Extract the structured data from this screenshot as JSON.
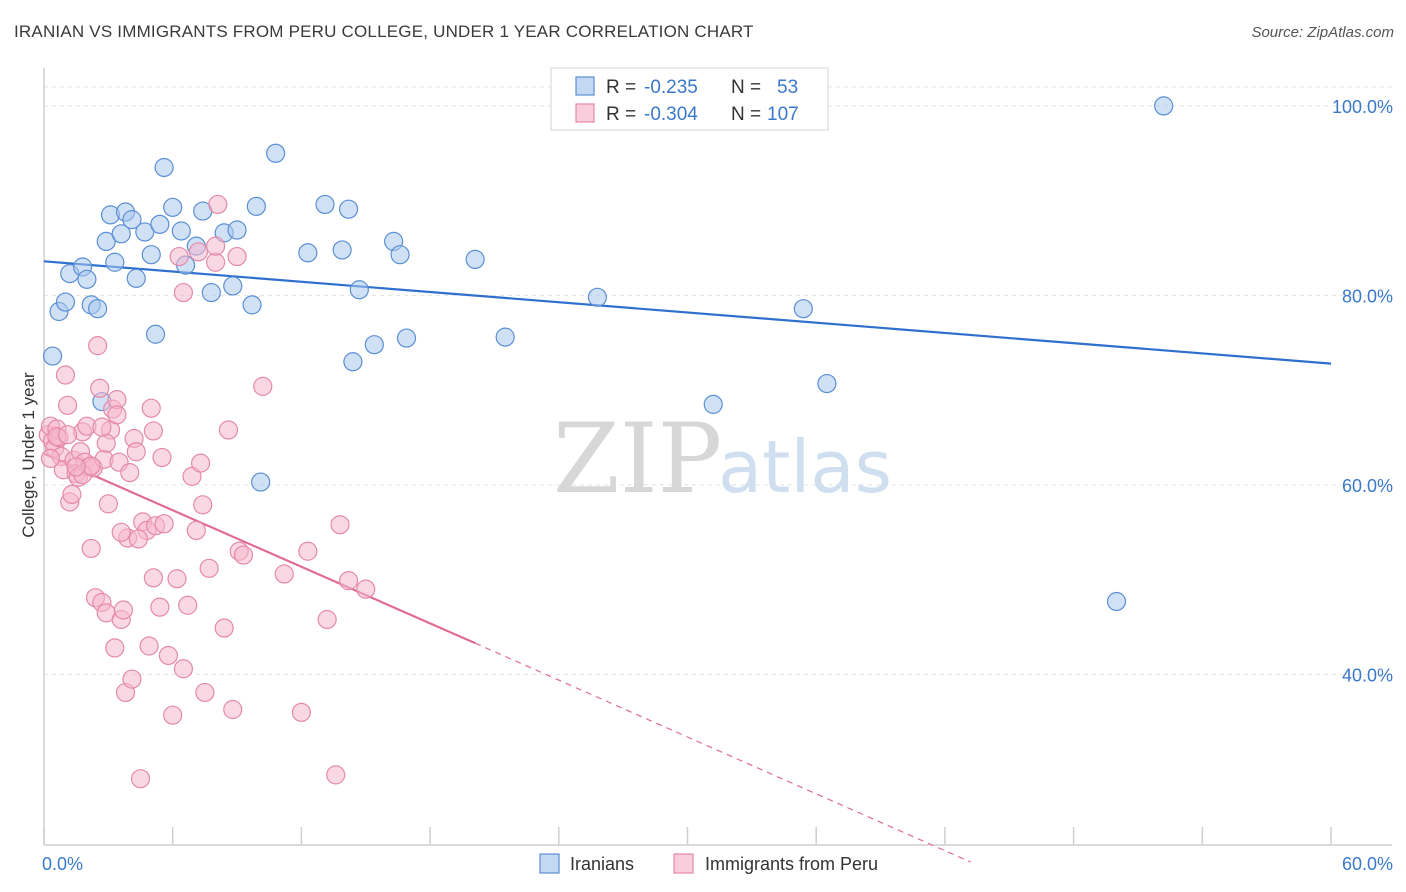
{
  "title": "IRANIAN VS IMMIGRANTS FROM PERU COLLEGE, UNDER 1 YEAR CORRELATION CHART",
  "source": "Source: ZipAtlas.com",
  "watermark": {
    "zip": "ZIP",
    "atlas": "atlas"
  },
  "legend": {
    "rows": [
      {
        "r_label": "R = ",
        "r_value": "-0.235",
        "n_label": "N = ",
        "n_value": "53"
      },
      {
        "r_label": "R = ",
        "r_value": "-0.304",
        "n_label": "N = ",
        "n_value": "107"
      }
    ]
  },
  "colors": {
    "iranians_fill": "#aac8ee",
    "iranians_stroke": "#5b8fd4",
    "iranians_line": "#2f6fcd",
    "peru_fill": "#f6b8cc",
    "peru_stroke": "#e48aa8",
    "peru_line": "#e06c95",
    "axis_label": "#3a78c9"
  },
  "chart_data": {
    "type": "scatter",
    "xlabel": "",
    "ylabel": "College, Under 1 year",
    "xlim": [
      0,
      60
    ],
    "ylim": [
      22,
      104
    ],
    "x_tick_labels": [
      "0.0%",
      "60.0%"
    ],
    "x_ticks": [
      0,
      60
    ],
    "y_ticks": [
      40,
      60,
      80,
      100
    ],
    "y_tick_labels": [
      "40.0%",
      "60.0%",
      "80.0%",
      "100.0%"
    ],
    "grid": true,
    "legend_position": "bottom",
    "series": [
      {
        "name": "Iranians",
        "trend": {
          "x": [
            0,
            60
          ],
          "y": [
            83.6,
            72.8
          ],
          "dashed_to": null
        },
        "points": [
          [
            0.4,
            73.6
          ],
          [
            0.7,
            78.3
          ],
          [
            1.0,
            79.3
          ],
          [
            1.2,
            82.3
          ],
          [
            1.8,
            83.0
          ],
          [
            2.0,
            81.7
          ],
          [
            2.2,
            79.0
          ],
          [
            2.5,
            78.6
          ],
          [
            2.7,
            68.8
          ],
          [
            2.9,
            85.7
          ],
          [
            3.1,
            88.5
          ],
          [
            3.3,
            83.5
          ],
          [
            3.6,
            86.5
          ],
          [
            3.8,
            88.8
          ],
          [
            4.1,
            88.0
          ],
          [
            4.3,
            81.8
          ],
          [
            4.7,
            86.7
          ],
          [
            5.0,
            84.3
          ],
          [
            5.2,
            75.9
          ],
          [
            5.4,
            87.5
          ],
          [
            5.6,
            93.5
          ],
          [
            6.0,
            89.3
          ],
          [
            6.4,
            86.8
          ],
          [
            6.6,
            83.2
          ],
          [
            7.1,
            85.2
          ],
          [
            7.4,
            88.9
          ],
          [
            7.8,
            80.3
          ],
          [
            8.4,
            86.6
          ],
          [
            8.8,
            81.0
          ],
          [
            9.0,
            86.9
          ],
          [
            9.7,
            79.0
          ],
          [
            9.9,
            89.4
          ],
          [
            10.1,
            60.3
          ],
          [
            10.8,
            95.0
          ],
          [
            12.3,
            84.5
          ],
          [
            13.1,
            89.6
          ],
          [
            13.9,
            84.8
          ],
          [
            14.2,
            89.1
          ],
          [
            14.4,
            73.0
          ],
          [
            14.7,
            80.6
          ],
          [
            15.4,
            74.8
          ],
          [
            16.3,
            85.7
          ],
          [
            16.6,
            84.3
          ],
          [
            16.9,
            75.5
          ],
          [
            20.1,
            83.8
          ],
          [
            21.5,
            75.6
          ],
          [
            25.8,
            79.8
          ],
          [
            31.2,
            68.5
          ],
          [
            35.4,
            78.6
          ],
          [
            36.5,
            70.7
          ],
          [
            50.0,
            47.7
          ],
          [
            52.2,
            100.0
          ]
        ]
      },
      {
        "name": "Immigrants from Peru",
        "trend": {
          "x": [
            0,
            20.1
          ],
          "y": [
            63.3,
            43.3
          ],
          "dashed_to": {
            "x": 43.2,
            "y": 20.2
          }
        },
        "points": [
          [
            0.2,
            65.3
          ],
          [
            0.3,
            66.2
          ],
          [
            0.4,
            64.6
          ],
          [
            0.5,
            63.9
          ],
          [
            0.6,
            65.9
          ],
          [
            0.7,
            65.0
          ],
          [
            0.8,
            63.0
          ],
          [
            0.9,
            61.6
          ],
          [
            1.0,
            71.6
          ],
          [
            1.1,
            68.4
          ],
          [
            1.2,
            58.2
          ],
          [
            1.3,
            59.0
          ],
          [
            1.4,
            62.6
          ],
          [
            1.5,
            61.2
          ],
          [
            1.6,
            60.8
          ],
          [
            1.7,
            63.5
          ],
          [
            1.8,
            65.6
          ],
          [
            1.9,
            62.4
          ],
          [
            2.0,
            66.2
          ],
          [
            2.1,
            61.9
          ],
          [
            2.2,
            53.3
          ],
          [
            2.3,
            61.8
          ],
          [
            2.4,
            48.1
          ],
          [
            2.5,
            74.7
          ],
          [
            2.6,
            70.2
          ],
          [
            2.7,
            47.6
          ],
          [
            2.8,
            62.7
          ],
          [
            2.9,
            46.5
          ],
          [
            3.0,
            58.0
          ],
          [
            3.1,
            65.8
          ],
          [
            3.2,
            68.0
          ],
          [
            3.3,
            42.8
          ],
          [
            3.4,
            69.0
          ],
          [
            3.5,
            62.4
          ],
          [
            3.6,
            45.8
          ],
          [
            3.7,
            46.8
          ],
          [
            3.8,
            38.1
          ],
          [
            3.9,
            54.4
          ],
          [
            4.0,
            61.3
          ],
          [
            4.1,
            39.5
          ],
          [
            4.2,
            64.9
          ],
          [
            4.3,
            63.5
          ],
          [
            4.5,
            29.0
          ],
          [
            4.6,
            56.1
          ],
          [
            4.8,
            55.2
          ],
          [
            5.0,
            68.1
          ],
          [
            5.1,
            50.2
          ],
          [
            5.2,
            55.7
          ],
          [
            5.4,
            47.1
          ],
          [
            5.5,
            62.9
          ],
          [
            5.6,
            55.9
          ],
          [
            5.8,
            42.0
          ],
          [
            6.0,
            35.7
          ],
          [
            6.2,
            50.1
          ],
          [
            6.3,
            84.1
          ],
          [
            6.5,
            40.6
          ],
          [
            6.7,
            47.3
          ],
          [
            6.9,
            60.9
          ],
          [
            7.1,
            55.2
          ],
          [
            7.3,
            62.3
          ],
          [
            7.4,
            57.9
          ],
          [
            7.5,
            38.1
          ],
          [
            7.7,
            51.2
          ],
          [
            8.0,
            83.5
          ],
          [
            8.1,
            89.6
          ],
          [
            8.4,
            44.9
          ],
          [
            8.6,
            65.8
          ],
          [
            8.8,
            36.3
          ],
          [
            9.0,
            84.1
          ],
          [
            9.1,
            53.0
          ],
          [
            9.3,
            52.6
          ],
          [
            10.2,
            70.4
          ],
          [
            11.2,
            50.6
          ],
          [
            12.0,
            36.0
          ],
          [
            12.3,
            53.0
          ],
          [
            13.2,
            45.8
          ],
          [
            13.6,
            29.4
          ],
          [
            13.8,
            55.8
          ],
          [
            14.2,
            49.9
          ],
          [
            15.0,
            49.0
          ],
          [
            0.6,
            65.1
          ],
          [
            1.1,
            65.3
          ],
          [
            1.8,
            61.1
          ],
          [
            2.2,
            62.0
          ],
          [
            2.9,
            64.4
          ],
          [
            3.4,
            67.4
          ],
          [
            4.4,
            54.3
          ],
          [
            5.1,
            65.7
          ],
          [
            6.5,
            80.3
          ],
          [
            7.2,
            84.6
          ],
          [
            3.6,
            55.0
          ],
          [
            4.9,
            43.0
          ],
          [
            8.0,
            85.2
          ],
          [
            2.7,
            66.1
          ],
          [
            1.5,
            61.9
          ],
          [
            0.3,
            62.8
          ]
        ]
      }
    ]
  },
  "bottom_legend": {
    "items": [
      {
        "label": "Iranians"
      },
      {
        "label": "Immigrants from Peru"
      }
    ]
  }
}
